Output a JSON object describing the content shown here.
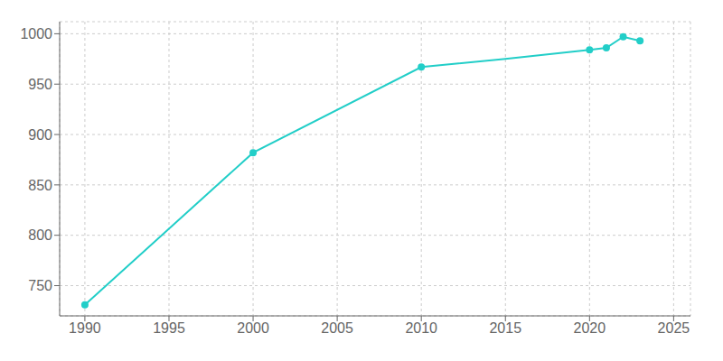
{
  "chart_data": {
    "type": "line",
    "x": [
      1990,
      2000,
      2010,
      2015,
      2020,
      2021,
      2022,
      2023
    ],
    "series": [
      {
        "values": [
          731,
          882,
          967,
          975,
          984,
          986,
          997,
          993
        ],
        "color": "#22CEC8",
        "marker": "none",
        "line_style": "solid"
      },
      {
        "type": "scatter",
        "values": [
          731,
          882,
          967,
          null,
          984,
          986,
          997,
          993
        ],
        "color": "#22CEC8",
        "marker": "circle"
      }
    ],
    "xlim": [
      1988.5,
      2026
    ],
    "xticks": [
      1990,
      1995,
      2000,
      2005,
      2010,
      2015,
      2020,
      2025
    ],
    "ylim": [
      720,
      1012
    ],
    "yticks": [
      750,
      800,
      850,
      900,
      950,
      1000
    ],
    "grid": true
  }
}
